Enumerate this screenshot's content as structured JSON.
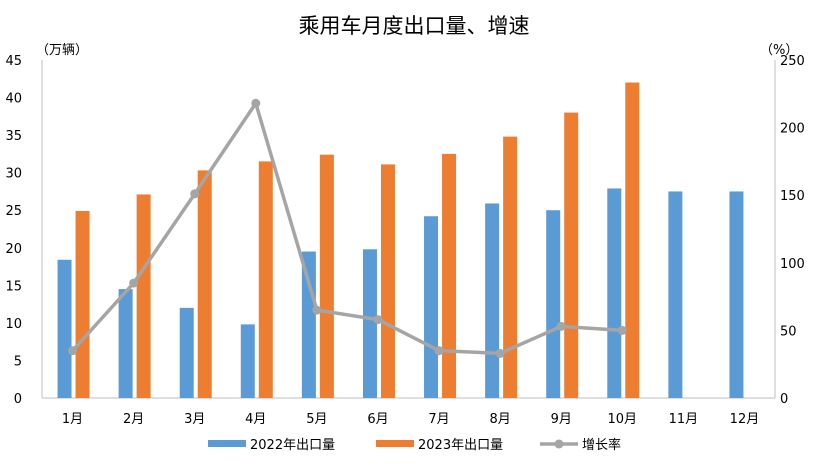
{
  "chart_data": {
    "type": "bar",
    "title": "乘用车月度出口量、增速",
    "ylabel": "（万辆）",
    "y2label": "（%）",
    "ylim": [
      0,
      45
    ],
    "yticks": [
      0,
      5,
      10,
      15,
      20,
      25,
      30,
      35,
      40,
      45
    ],
    "y2lim": [
      0,
      250
    ],
    "y2ticks": [
      0,
      50,
      100,
      150,
      200,
      250
    ],
    "grid": false,
    "legend": "bottom",
    "categories": [
      "1月",
      "2月",
      "3月",
      "4月",
      "5月",
      "6月",
      "7月",
      "8月",
      "9月",
      "10月",
      "11月",
      "12月"
    ],
    "series": [
      {
        "name": "2022年出口量",
        "type": "bar",
        "axis": "left",
        "color": "#5b9bd5",
        "values": [
          18.4,
          14.5,
          12.0,
          9.8,
          19.5,
          19.8,
          24.2,
          25.9,
          25.0,
          27.9,
          27.5,
          27.5
        ]
      },
      {
        "name": "2023年出口量",
        "type": "bar",
        "axis": "left",
        "color": "#ed7d31",
        "values": [
          24.9,
          27.1,
          30.3,
          31.5,
          32.4,
          31.1,
          32.5,
          34.8,
          38.0,
          42.0,
          null,
          null
        ]
      },
      {
        "name": "增长率",
        "type": "line",
        "axis": "right",
        "color": "#a5a5a5",
        "values": [
          35,
          85,
          151,
          218,
          65,
          58,
          35,
          33,
          53,
          50,
          null,
          null
        ]
      }
    ]
  }
}
